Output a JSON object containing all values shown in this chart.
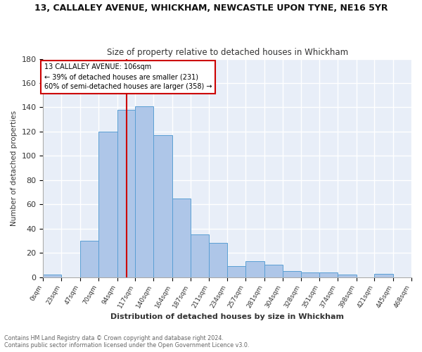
{
  "title1": "13, CALLALEY AVENUE, WHICKHAM, NEWCASTLE UPON TYNE, NE16 5YR",
  "title2": "Size of property relative to detached houses in Whickham",
  "xlabel": "Distribution of detached houses by size in Whickham",
  "ylabel": "Number of detached properties",
  "footer1": "Contains HM Land Registry data © Crown copyright and database right 2024.",
  "footer2": "Contains public sector information licensed under the Open Government Licence v3.0.",
  "bin_edges": [
    0,
    23,
    47,
    70,
    94,
    117,
    140,
    164,
    187,
    211,
    234,
    257,
    281,
    304,
    328,
    351,
    374,
    398,
    421,
    445,
    468
  ],
  "bin_labels": [
    "0sqm",
    "23sqm",
    "47sqm",
    "70sqm",
    "94sqm",
    "117sqm",
    "140sqm",
    "164sqm",
    "187sqm",
    "211sqm",
    "234sqm",
    "257sqm",
    "281sqm",
    "304sqm",
    "328sqm",
    "351sqm",
    "374sqm",
    "398sqm",
    "421sqm",
    "445sqm",
    "468sqm"
  ],
  "counts": [
    2,
    0,
    30,
    120,
    138,
    141,
    117,
    65,
    35,
    28,
    9,
    13,
    10,
    5,
    4,
    4,
    2,
    0,
    3,
    0
  ],
  "bar_color": "#aec6e8",
  "bar_edge_color": "#5a9fd4",
  "vline_x": 106,
  "vline_color": "#cc0000",
  "annotation_line1": "13 CALLALEY AVENUE: 106sqm",
  "annotation_line2": "← 39% of detached houses are smaller (231)",
  "annotation_line3": "60% of semi-detached houses are larger (358) →",
  "ylim": [
    0,
    180
  ],
  "background_color": "#e8eef8",
  "grid_color": "#ffffff"
}
